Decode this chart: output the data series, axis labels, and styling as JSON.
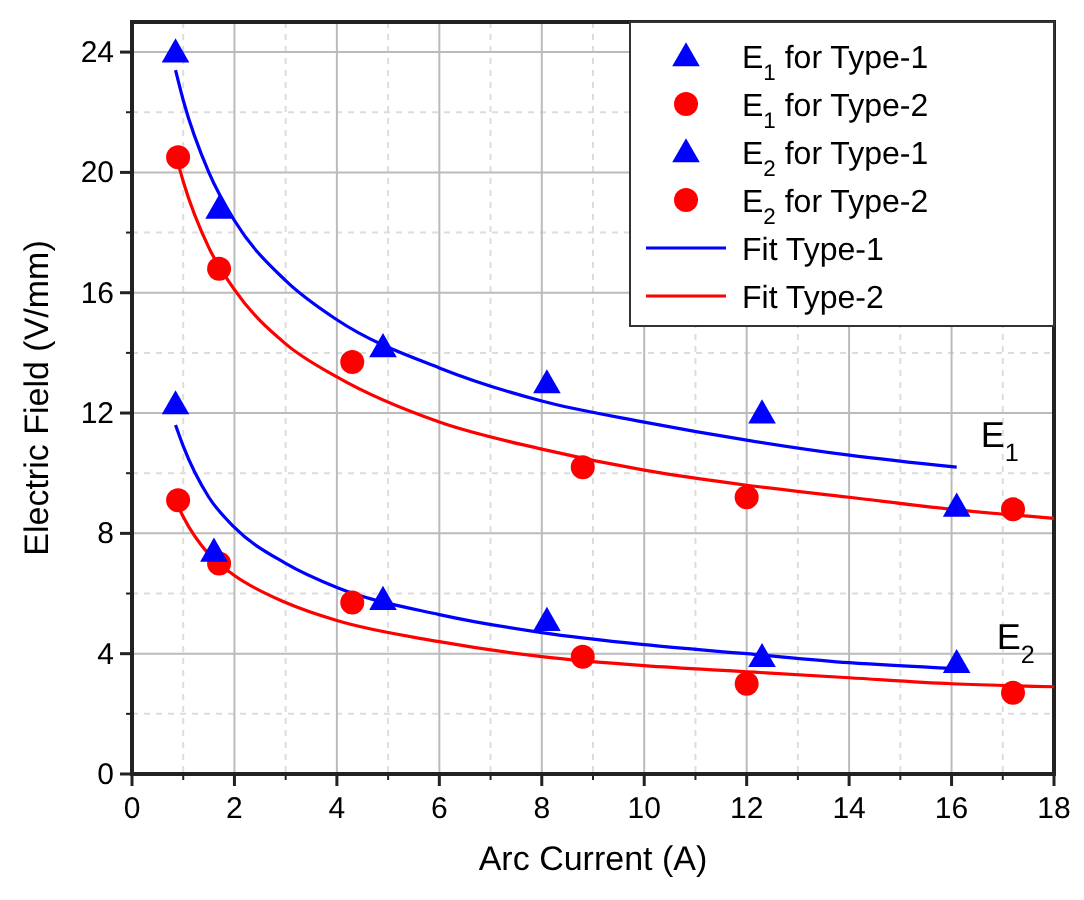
{
  "chart_data": {
    "type": "scatter",
    "xlabel": "Arc Current (A)",
    "ylabel": "Electric Field (V/mm)",
    "xlim": [
      0,
      18
    ],
    "xticks": [
      0,
      2,
      4,
      6,
      8,
      10,
      12,
      14,
      16,
      18
    ],
    "ylim": [
      0,
      25
    ],
    "yticks": [
      0,
      4,
      8,
      12,
      16,
      20,
      24
    ],
    "grid": true,
    "legend": "top right",
    "series": [
      {
        "name": "E$_{1}$ for Type-1",
        "color": "#0000ff",
        "marker": "triangle",
        "x": [
          0.85,
          1.7,
          4.9,
          8.1,
          12.3,
          16.1
        ],
        "values": [
          24,
          18.8,
          14.2,
          13.0,
          12.0,
          8.9
        ]
      },
      {
        "name": "E$_{1}$ for Type-2",
        "color": "#ff0000",
        "marker": "circle",
        "x": [
          0.9,
          1.7,
          4.3,
          8.8,
          12.0,
          17.2
        ],
        "values": [
          20.5,
          16.8,
          13.7,
          10.2,
          9.2,
          8.8
        ]
      },
      {
        "name": "E$_{2}$ for Type-1",
        "color": "#0000ff",
        "marker": "triangle",
        "x": [
          0.85,
          1.6,
          4.9,
          8.1,
          12.3,
          16.1
        ],
        "values": [
          12.3,
          7.4,
          5.8,
          5.1,
          3.9,
          3.7
        ]
      },
      {
        "name": "E$_{2}$ for Type-2",
        "color": "#ff0000",
        "marker": "circle",
        "x": [
          0.9,
          1.7,
          4.3,
          8.8,
          12.0,
          17.2
        ],
        "values": [
          9.1,
          7.0,
          5.7,
          3.9,
          3.0,
          2.7
        ]
      },
      {
        "name": "Fit Type-1",
        "type": "line",
        "color": "#0000ff",
        "x": [
          0.85,
          1,
          1.5,
          2,
          3,
          4,
          6,
          8,
          10,
          12,
          14,
          16.1,
          null,
          0.85,
          1,
          1.5,
          2,
          3,
          4,
          6,
          8,
          10,
          12,
          14,
          16.1
        ],
        "values": [
          23.4,
          22.4,
          20.0,
          18.4,
          16.4,
          15.1,
          13.5,
          12.4,
          11.7,
          11.1,
          10.6,
          10.2,
          null,
          11.6,
          10.9,
          9.2,
          8.2,
          7.0,
          6.2,
          5.3,
          4.7,
          4.3,
          4.0,
          3.7,
          3.5
        ]
      },
      {
        "name": "Fit Type-2",
        "type": "line",
        "color": "#ff0000",
        "x": [
          0.9,
          1,
          1.5,
          2,
          3,
          4,
          6,
          8,
          10,
          12,
          14,
          16,
          18,
          null,
          0.9,
          1,
          1.5,
          2,
          3,
          4,
          6,
          8,
          10,
          12,
          14,
          16,
          18
        ],
        "values": [
          20.3,
          19.7,
          17.5,
          16.1,
          14.3,
          13.2,
          11.7,
          10.8,
          10.1,
          9.6,
          9.2,
          8.8,
          8.5,
          null,
          8.9,
          8.55,
          7.3,
          6.6,
          5.7,
          5.1,
          4.4,
          3.9,
          3.6,
          3.4,
          3.2,
          3.0,
          2.9
        ]
      }
    ],
    "annotations": [
      "E$_{1}$",
      "E$_{2}$"
    ]
  }
}
